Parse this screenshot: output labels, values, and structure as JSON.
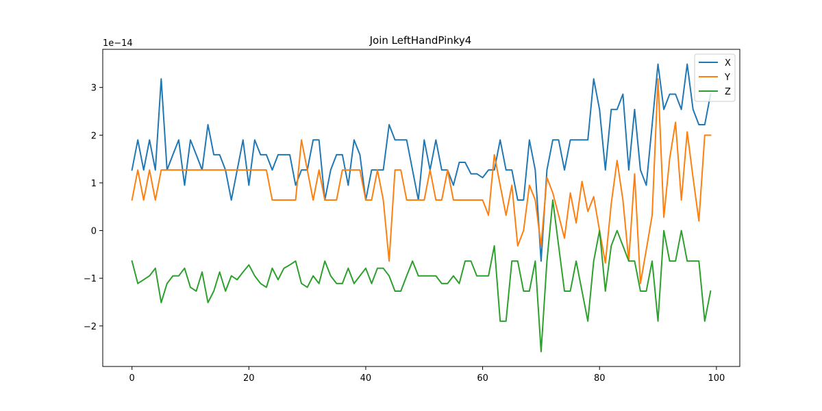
{
  "chart_data": {
    "type": "line",
    "title": "Join LeftHandPinky4",
    "xlabel": "",
    "ylabel": "",
    "y_offset_label": "1e−14",
    "xlim": [
      -5,
      104
    ],
    "ylim": [
      -2.85,
      3.8
    ],
    "x_ticks": [
      0,
      20,
      40,
      60,
      80,
      100
    ],
    "x_tick_labels": [
      "0",
      "20",
      "40",
      "60",
      "80",
      "100"
    ],
    "y_ticks": [
      -2,
      -1,
      0,
      1,
      2,
      3
    ],
    "y_tick_labels": [
      "−2",
      "−1",
      "0",
      "1",
      "2",
      "3"
    ],
    "grid": false,
    "legend_position": "top-right",
    "x": [
      0,
      1,
      2,
      3,
      4,
      5,
      6,
      7,
      8,
      9,
      10,
      11,
      12,
      13,
      14,
      15,
      16,
      17,
      18,
      19,
      20,
      21,
      22,
      23,
      24,
      25,
      26,
      27,
      28,
      29,
      30,
      31,
      32,
      33,
      34,
      35,
      36,
      37,
      38,
      39,
      40,
      41,
      42,
      43,
      44,
      45,
      46,
      47,
      48,
      49,
      50,
      51,
      52,
      53,
      54,
      55,
      56,
      57,
      58,
      59,
      60,
      61,
      62,
      63,
      64,
      65,
      66,
      67,
      68,
      69,
      70,
      71,
      72,
      73,
      74,
      75,
      76,
      77,
      78,
      79,
      80,
      81,
      82,
      83,
      84,
      85,
      86,
      87,
      88,
      89,
      90,
      91,
      92,
      93,
      94,
      95,
      96,
      97,
      98,
      99
    ],
    "series": [
      {
        "name": "X",
        "color": "#1f77b4",
        "values": [
          1.27,
          1.9,
          1.27,
          1.9,
          1.27,
          3.18,
          1.27,
          1.59,
          1.9,
          0.95,
          1.9,
          1.59,
          1.27,
          2.22,
          1.59,
          1.59,
          1.27,
          0.64,
          1.27,
          1.9,
          0.95,
          1.9,
          1.59,
          1.59,
          1.27,
          1.59,
          1.59,
          1.59,
          0.95,
          1.27,
          1.27,
          1.9,
          1.9,
          0.64,
          1.27,
          1.59,
          1.59,
          0.95,
          1.9,
          1.59,
          0.64,
          1.27,
          1.27,
          1.27,
          2.22,
          1.9,
          1.9,
          1.9,
          1.27,
          0.64,
          1.9,
          1.27,
          1.9,
          1.27,
          1.27,
          0.95,
          1.43,
          1.43,
          1.19,
          1.19,
          1.11,
          1.27,
          1.27,
          1.9,
          1.27,
          1.27,
          0.64,
          0.64,
          1.9,
          1.27,
          -0.64,
          1.27,
          1.9,
          1.9,
          1.27,
          1.9,
          1.9,
          1.9,
          1.9,
          3.18,
          2.54,
          1.27,
          2.54,
          2.54,
          2.86,
          1.27,
          2.54,
          1.27,
          0.95,
          2.22,
          3.49,
          2.54,
          2.86,
          2.86,
          2.54,
          3.49,
          2.54,
          2.22,
          2.22,
          2.86
        ]
      },
      {
        "name": "Y",
        "color": "#ff7f0e",
        "values": [
          0.64,
          1.27,
          0.64,
          1.27,
          0.64,
          1.27,
          1.27,
          1.27,
          1.27,
          1.27,
          1.27,
          1.27,
          1.27,
          1.27,
          1.27,
          1.27,
          1.27,
          1.27,
          1.27,
          1.27,
          1.27,
          1.27,
          1.27,
          1.27,
          0.64,
          0.64,
          0.64,
          0.64,
          0.64,
          1.9,
          1.27,
          0.64,
          1.27,
          0.64,
          0.64,
          0.64,
          1.27,
          1.27,
          1.27,
          1.27,
          0.64,
          0.64,
          1.27,
          0.64,
          -0.64,
          1.27,
          1.27,
          0.64,
          0.64,
          0.64,
          0.64,
          1.27,
          0.64,
          0.64,
          1.27,
          0.64,
          0.64,
          0.64,
          0.64,
          0.64,
          0.64,
          0.32,
          1.59,
          0.95,
          0.32,
          0.95,
          -0.32,
          0.0,
          0.95,
          0.64,
          -0.32,
          1.11,
          0.79,
          0.32,
          -0.16,
          0.79,
          0.16,
          1.03,
          0.4,
          0.71,
          0.0,
          -0.68,
          0.56,
          1.47,
          0.64,
          -0.64,
          1.19,
          -1.11,
          -0.4,
          0.32,
          3.18,
          0.28,
          1.51,
          2.27,
          0.64,
          2.07,
          1.11,
          0.2,
          2.0,
          2.0
        ]
      },
      {
        "name": "Z",
        "color": "#2ca02c",
        "values": [
          -0.64,
          -1.11,
          -1.03,
          -0.95,
          -0.79,
          -1.51,
          -1.11,
          -0.95,
          -0.95,
          -0.79,
          -1.19,
          -1.27,
          -0.87,
          -1.51,
          -1.27,
          -0.87,
          -1.27,
          -0.95,
          -1.03,
          -0.87,
          -0.72,
          -0.95,
          -1.11,
          -1.19,
          -0.79,
          -1.03,
          -0.79,
          -0.72,
          -0.64,
          -1.11,
          -1.19,
          -0.95,
          -1.11,
          -0.64,
          -0.95,
          -1.11,
          -1.11,
          -0.79,
          -1.11,
          -0.95,
          -0.79,
          -1.11,
          -0.79,
          -0.79,
          -0.95,
          -1.27,
          -1.27,
          -0.95,
          -0.64,
          -0.95,
          -0.95,
          -0.95,
          -0.95,
          -1.11,
          -1.11,
          -0.95,
          -1.11,
          -0.64,
          -0.64,
          -0.95,
          -0.95,
          -0.95,
          -0.32,
          -1.9,
          -1.9,
          -0.64,
          -0.64,
          -1.27,
          -1.27,
          -0.64,
          -2.54,
          -0.64,
          0.64,
          -0.32,
          -1.27,
          -1.27,
          -0.64,
          -1.27,
          -1.9,
          -0.64,
          0.0,
          -1.27,
          -0.32,
          0.0,
          -0.32,
          -0.64,
          -0.64,
          -1.27,
          -1.27,
          -0.64,
          -1.9,
          0.0,
          -0.64,
          -0.64,
          0.0,
          -0.64,
          -0.64,
          -0.64,
          -1.9,
          -1.27
        ]
      }
    ]
  }
}
